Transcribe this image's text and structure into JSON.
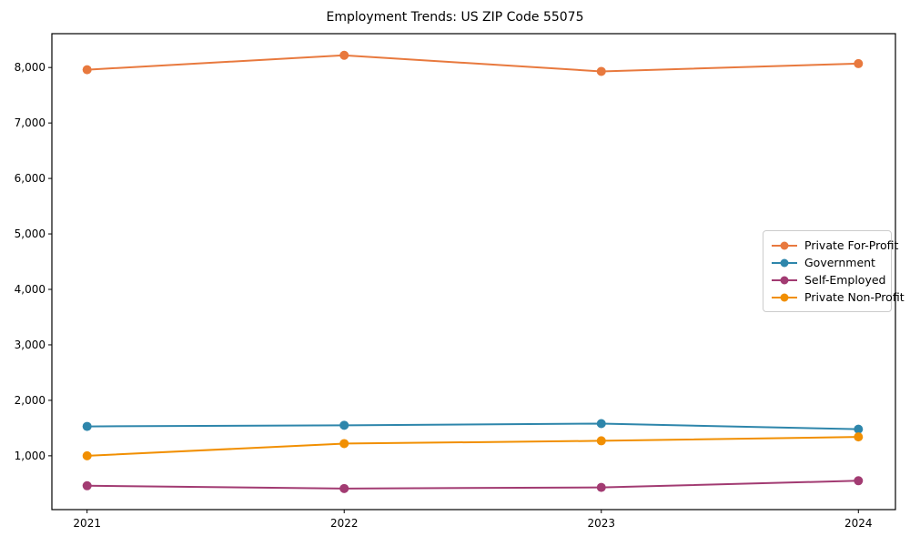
{
  "chart_data": {
    "type": "line",
    "title": "Employment Trends: US ZIP Code 55075",
    "xlabel": "",
    "ylabel": "",
    "x_categories": [
      "2021",
      "2022",
      "2023",
      "2024"
    ],
    "y_tick_values": [
      1000,
      2000,
      3000,
      4000,
      5000,
      6000,
      7000,
      8000
    ],
    "y_tick_labels": [
      "1,000",
      "2,000",
      "3,000",
      "4,000",
      "5,000",
      "6,000",
      "7,000",
      "8,000"
    ],
    "ylim": [
      30,
      8610
    ],
    "grid": false,
    "frame": true,
    "marker": "circle",
    "legend_position": "center-right",
    "series": [
      {
        "name": "Private For-Profit",
        "color": "#E8793E",
        "values": [
          7960,
          8220,
          7930,
          8070
        ]
      },
      {
        "name": "Government",
        "color": "#2E86AB",
        "values": [
          1530,
          1550,
          1580,
          1480
        ]
      },
      {
        "name": "Self-Employed",
        "color": "#A23B72",
        "values": [
          460,
          410,
          430,
          550
        ]
      },
      {
        "name": "Private Non-Profit",
        "color": "#F18F01",
        "values": [
          1000,
          1220,
          1270,
          1340
        ]
      }
    ]
  }
}
